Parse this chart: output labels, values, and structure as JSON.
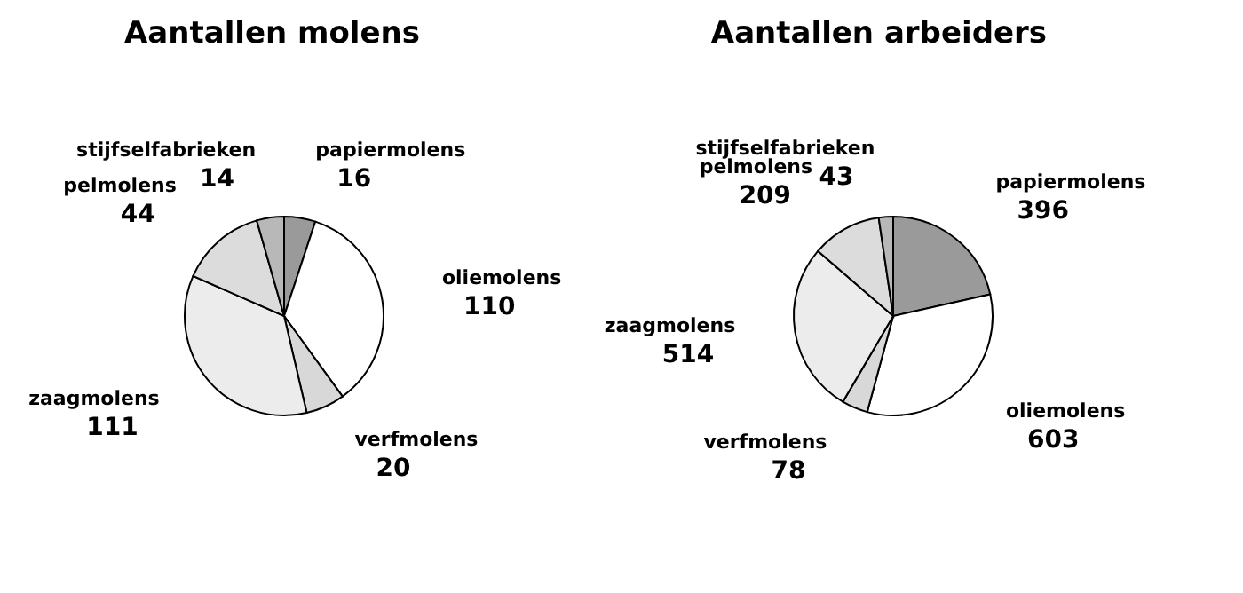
{
  "chart_data": [
    {
      "type": "pie",
      "title": "Aantallen molens",
      "categories": [
        "papiermolens",
        "oliemolens",
        "verfmolens",
        "zaagmolens",
        "pelmolens",
        "stijfselfabrieken"
      ],
      "values": [
        16,
        110,
        20,
        111,
        44,
        14
      ],
      "colors": [
        "#9a9a9a",
        "#ffffff",
        "#d8d8d8",
        "#ececec",
        "#dcdcdc",
        "#b8b8b8"
      ],
      "data_labels": true,
      "legend": false
    },
    {
      "type": "pie",
      "title": "Aantallen arbeiders",
      "categories": [
        "papiermolens",
        "oliemolens",
        "verfmolens",
        "zaagmolens",
        "pelmolens",
        "stijfselfabrieken"
      ],
      "values": [
        396,
        603,
        78,
        514,
        209,
        43
      ],
      "colors": [
        "#9a9a9a",
        "#ffffff",
        "#d8d8d8",
        "#ececec",
        "#dcdcdc",
        "#b8b8b8"
      ],
      "data_labels": true,
      "legend": false
    }
  ]
}
